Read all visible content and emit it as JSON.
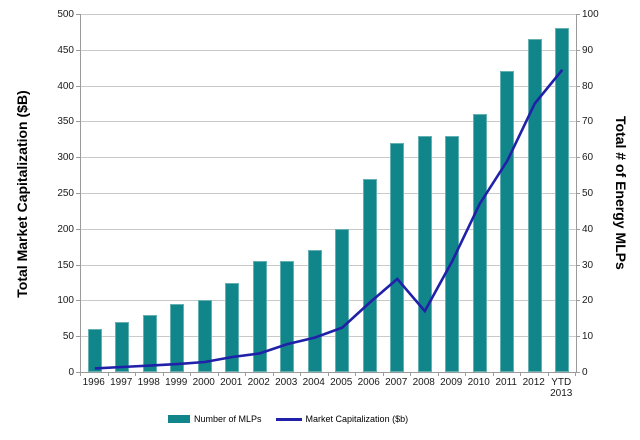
{
  "chart_data": {
    "type": "combo-bar-line",
    "categories": [
      "1996",
      "1997",
      "1998",
      "1999",
      "2000",
      "2001",
      "2002",
      "2003",
      "2004",
      "2005",
      "2006",
      "2007",
      "2008",
      "2009",
      "2010",
      "2011",
      "2012",
      "YTD 2013"
    ],
    "category_display": [
      "1996",
      "1997",
      "1998",
      "1999",
      "2000",
      "2001",
      "2002",
      "2003",
      "2004",
      "2005",
      "2006",
      "2007",
      "2008",
      "2009",
      "2010",
      "2011",
      "2012",
      "YTD\n2013"
    ],
    "series": [
      {
        "name": "Number of MLPs",
        "type": "bar",
        "axis": "right",
        "color": "#11868a",
        "values": [
          12,
          14,
          16,
          19,
          20,
          25,
          31,
          31,
          34,
          40,
          54,
          64,
          66,
          66,
          72,
          84,
          93,
          96
        ]
      },
      {
        "name": "Market Capitalization  ($b)",
        "type": "line",
        "axis": "left",
        "color": "#2020a8",
        "values": [
          5,
          7,
          9,
          11,
          14,
          21,
          26,
          39,
          48,
          62,
          97,
          130,
          85,
          155,
          235,
          295,
          375,
          422
        ]
      }
    ],
    "left_axis": {
      "label": "Total Market Capitalization ($B)",
      "min": 0,
      "max": 500,
      "step": 50,
      "ticks": [
        0,
        50,
        100,
        150,
        200,
        250,
        300,
        350,
        400,
        450,
        500
      ]
    },
    "right_axis": {
      "label": "Total # of Energy MLPs",
      "min": 0,
      "max": 100,
      "step": 10,
      "ticks": [
        0,
        10,
        20,
        30,
        40,
        50,
        60,
        70,
        80,
        90,
        100
      ]
    },
    "grid": true,
    "legend_position": "bottom"
  },
  "colors": {
    "bar": "#11868a",
    "line": "#2020a8",
    "gridline": "#c9c9c9",
    "axis": "#9b9b9b",
    "text": "#1a1a1a",
    "background": "#ffffff"
  }
}
